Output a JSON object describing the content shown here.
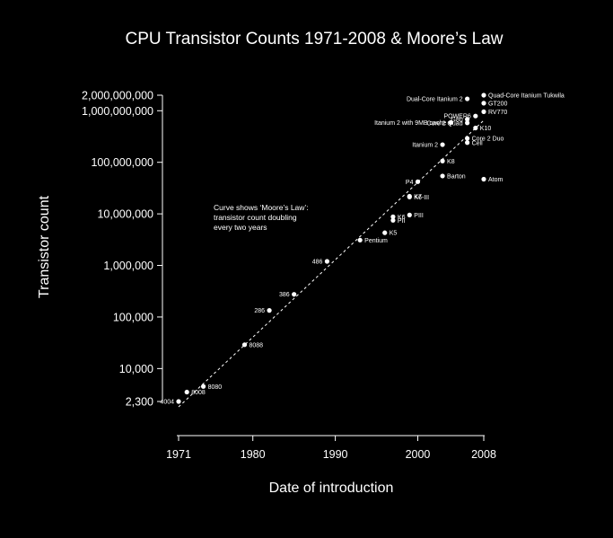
{
  "chart_data": {
    "type": "scatter",
    "title": "CPU Transistor Counts 1971-2008 & Moore’s Law",
    "xlabel": "Date of introduction",
    "ylabel": "Transistor count",
    "xscale": "linear",
    "yscale": "log",
    "xlim": [
      1971,
      2008
    ],
    "ylim": [
      2300,
      2000000000
    ],
    "x_ticks": [
      1971,
      1980,
      1990,
      2000,
      2008
    ],
    "y_ticks": [
      {
        "value": 2300,
        "label": "2,300"
      },
      {
        "value": 10000,
        "label": "10,000"
      },
      {
        "value": 100000,
        "label": "100,000"
      },
      {
        "value": 1000000,
        "label": "1,000,000"
      },
      {
        "value": 10000000,
        "label": "10,000,000"
      },
      {
        "value": 100000000,
        "label": "100,000,000"
      },
      {
        "value": 1000000000,
        "label": "1,000,000,000"
      },
      {
        "value": 2000000000,
        "label": "2,000,000,000"
      }
    ],
    "annotation": [
      "Curve shows ‘Moore’s Law’:",
      "transistor count doubling",
      "every two years"
    ],
    "trend_line": {
      "style": "dashed",
      "from": [
        1971,
        2300
      ],
      "to": [
        2008,
        2000000000
      ]
    },
    "grid": false,
    "legend": "none",
    "colors": {
      "background": "#000000",
      "foreground": "#ffffff"
    },
    "points": [
      {
        "label": "4004",
        "x": 1971,
        "y": 2300,
        "side": "left"
      },
      {
        "label": "8008",
        "x": 1972,
        "y": 3500,
        "side": "right"
      },
      {
        "label": "8080",
        "x": 1974,
        "y": 4500,
        "side": "right"
      },
      {
        "label": "8088",
        "x": 1979,
        "y": 29000,
        "side": "right"
      },
      {
        "label": "286",
        "x": 1982,
        "y": 134000,
        "side": "left"
      },
      {
        "label": "386",
        "x": 1985,
        "y": 275000,
        "side": "left"
      },
      {
        "label": "486",
        "x": 1989,
        "y": 1200000,
        "side": "left"
      },
      {
        "label": "Pentium",
        "x": 1993,
        "y": 3100000,
        "side": "right"
      },
      {
        "label": "K5",
        "x": 1996,
        "y": 4300000,
        "side": "right"
      },
      {
        "label": "PII",
        "x": 1997,
        "y": 7500000,
        "side": "right"
      },
      {
        "label": "K6",
        "x": 1997,
        "y": 8800000,
        "side": "right"
      },
      {
        "label": "PIII",
        "x": 1999,
        "y": 9500000,
        "side": "right"
      },
      {
        "label": "K6-III",
        "x": 1999,
        "y": 21300000,
        "side": "right"
      },
      {
        "label": "K7",
        "x": 1999,
        "y": 22000000,
        "side": "right"
      },
      {
        "label": "P4",
        "x": 2000,
        "y": 42000000,
        "side": "left"
      },
      {
        "label": "Barton",
        "x": 2003,
        "y": 54300000,
        "side": "right"
      },
      {
        "label": "K8",
        "x": 2003,
        "y": 105900000,
        "side": "right"
      },
      {
        "label": "Itanium 2",
        "x": 2003,
        "y": 220000000,
        "side": "left"
      },
      {
        "label": "Cell",
        "x": 2006,
        "y": 241000000,
        "side": "right"
      },
      {
        "label": "Core 2 Duo",
        "x": 2006,
        "y": 291000000,
        "side": "right"
      },
      {
        "label": "Core 2 Quad",
        "x": 2006,
        "y": 582000000,
        "side": "left"
      },
      {
        "label": "Itanium 2 with 9MB cache",
        "x": 2004,
        "y": 592000000,
        "side": "left"
      },
      {
        "label": "G80",
        "x": 2006,
        "y": 681000000,
        "side": "left"
      },
      {
        "label": "K10",
        "x": 2007,
        "y": 463000000,
        "side": "right"
      },
      {
        "label": "POWER6",
        "x": 2007,
        "y": 789000000,
        "side": "left"
      },
      {
        "label": "RV770",
        "x": 2008,
        "y": 956000000,
        "side": "right"
      },
      {
        "label": "GT200",
        "x": 2008,
        "y": 1400000000,
        "side": "right"
      },
      {
        "label": "Dual-Core Itanium 2",
        "x": 2006,
        "y": 1700000000,
        "side": "left"
      },
      {
        "label": "Quad-Core Itanium Tukwila",
        "x": 2008,
        "y": 2000000000,
        "side": "right"
      },
      {
        "label": "Atom",
        "x": 2008,
        "y": 47000000,
        "side": "right"
      }
    ]
  }
}
